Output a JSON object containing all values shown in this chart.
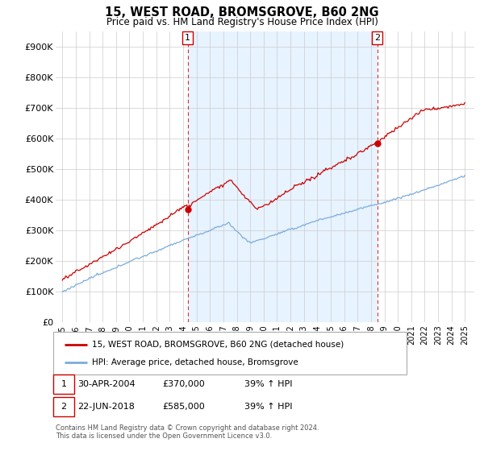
{
  "title": "15, WEST ROAD, BROMSGROVE, B60 2NG",
  "subtitle": "Price paid vs. HM Land Registry's House Price Index (HPI)",
  "ylim": [
    0,
    950000
  ],
  "yticks": [
    0,
    100000,
    200000,
    300000,
    400000,
    500000,
    600000,
    700000,
    800000,
    900000
  ],
  "ytick_labels": [
    "£0",
    "£100K",
    "£200K",
    "£300K",
    "£400K",
    "£500K",
    "£600K",
    "£700K",
    "£800K",
    "£900K"
  ],
  "property_color": "#cc0000",
  "hpi_color": "#7aacdc",
  "shade_color": "#ddeeff",
  "vline_color": "#cc0000",
  "sale1_year": 2004.33,
  "sale1_price": 370000,
  "sale1_label": "1",
  "sale1_date": "30-APR-2004",
  "sale1_pct": "39%",
  "sale2_year": 2018.47,
  "sale2_price": 585000,
  "sale2_label": "2",
  "sale2_date": "22-JUN-2018",
  "sale2_pct": "39%",
  "legend_property": "15, WEST ROAD, BROMSGROVE, B60 2NG (detached house)",
  "legend_hpi": "HPI: Average price, detached house, Bromsgrove",
  "footnote": "Contains HM Land Registry data © Crown copyright and database right 2024.\nThis data is licensed under the Open Government Licence v3.0.",
  "background_color": "#ffffff",
  "grid_color": "#cccccc"
}
